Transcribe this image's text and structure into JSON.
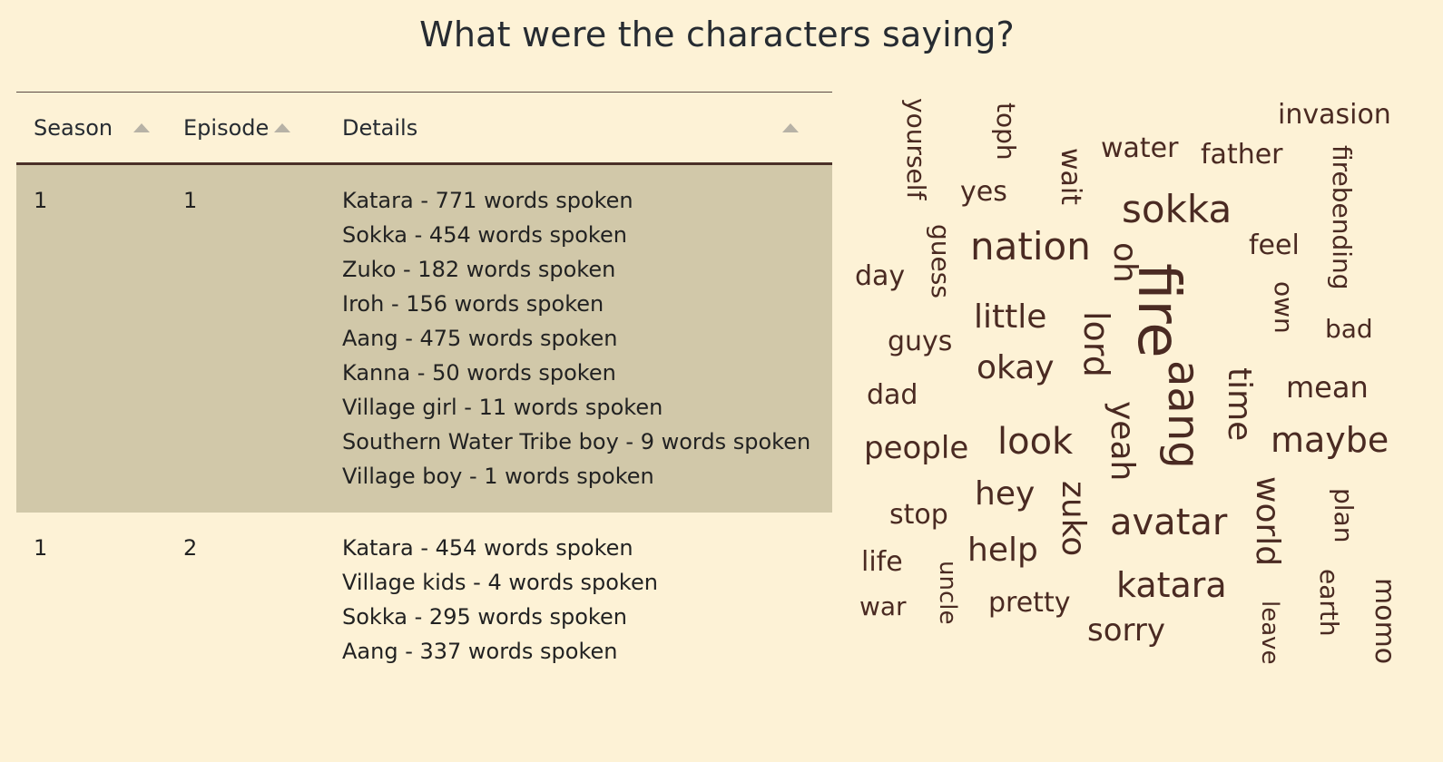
{
  "title": "What were the characters saying?",
  "table": {
    "columns": [
      "Season",
      "Episode",
      "Details"
    ],
    "rows": [
      {
        "season": "1",
        "episode": "1",
        "selected": true,
        "details": [
          "Katara - 771 words spoken",
          "Sokka - 454 words spoken",
          "Zuko - 182 words spoken",
          "Iroh - 156 words spoken",
          "Aang - 475 words spoken",
          "Kanna - 50 words spoken",
          "Village girl - 11 words spoken",
          "Southern Water Tribe boy - 9 words spoken",
          "Village boy - 1 words spoken"
        ]
      },
      {
        "season": "1",
        "episode": "2",
        "selected": false,
        "details": [
          "Katara - 454 words spoken",
          "Village kids - 4 words spoken",
          "Sokka - 295 words spoken",
          "Aang - 337 words spoken"
        ]
      }
    ]
  },
  "wordcloud": {
    "color": "#4a2a22",
    "words": [
      "fire",
      "aang",
      "nation",
      "sokka",
      "lord",
      "oh",
      "yeah",
      "time",
      "zuko",
      "avatar",
      "world",
      "look",
      "maybe",
      "katara",
      "okay",
      "little",
      "hey",
      "help",
      "people",
      "sorry",
      "water",
      "father",
      "invasion",
      "firebending",
      "yourself",
      "toph",
      "wait",
      "yes",
      "guess",
      "day",
      "feel",
      "own",
      "bad",
      "guys",
      "dad",
      "mean",
      "stop",
      "life",
      "war",
      "uncle",
      "pretty",
      "plan",
      "earth",
      "leave",
      "momo"
    ]
  }
}
